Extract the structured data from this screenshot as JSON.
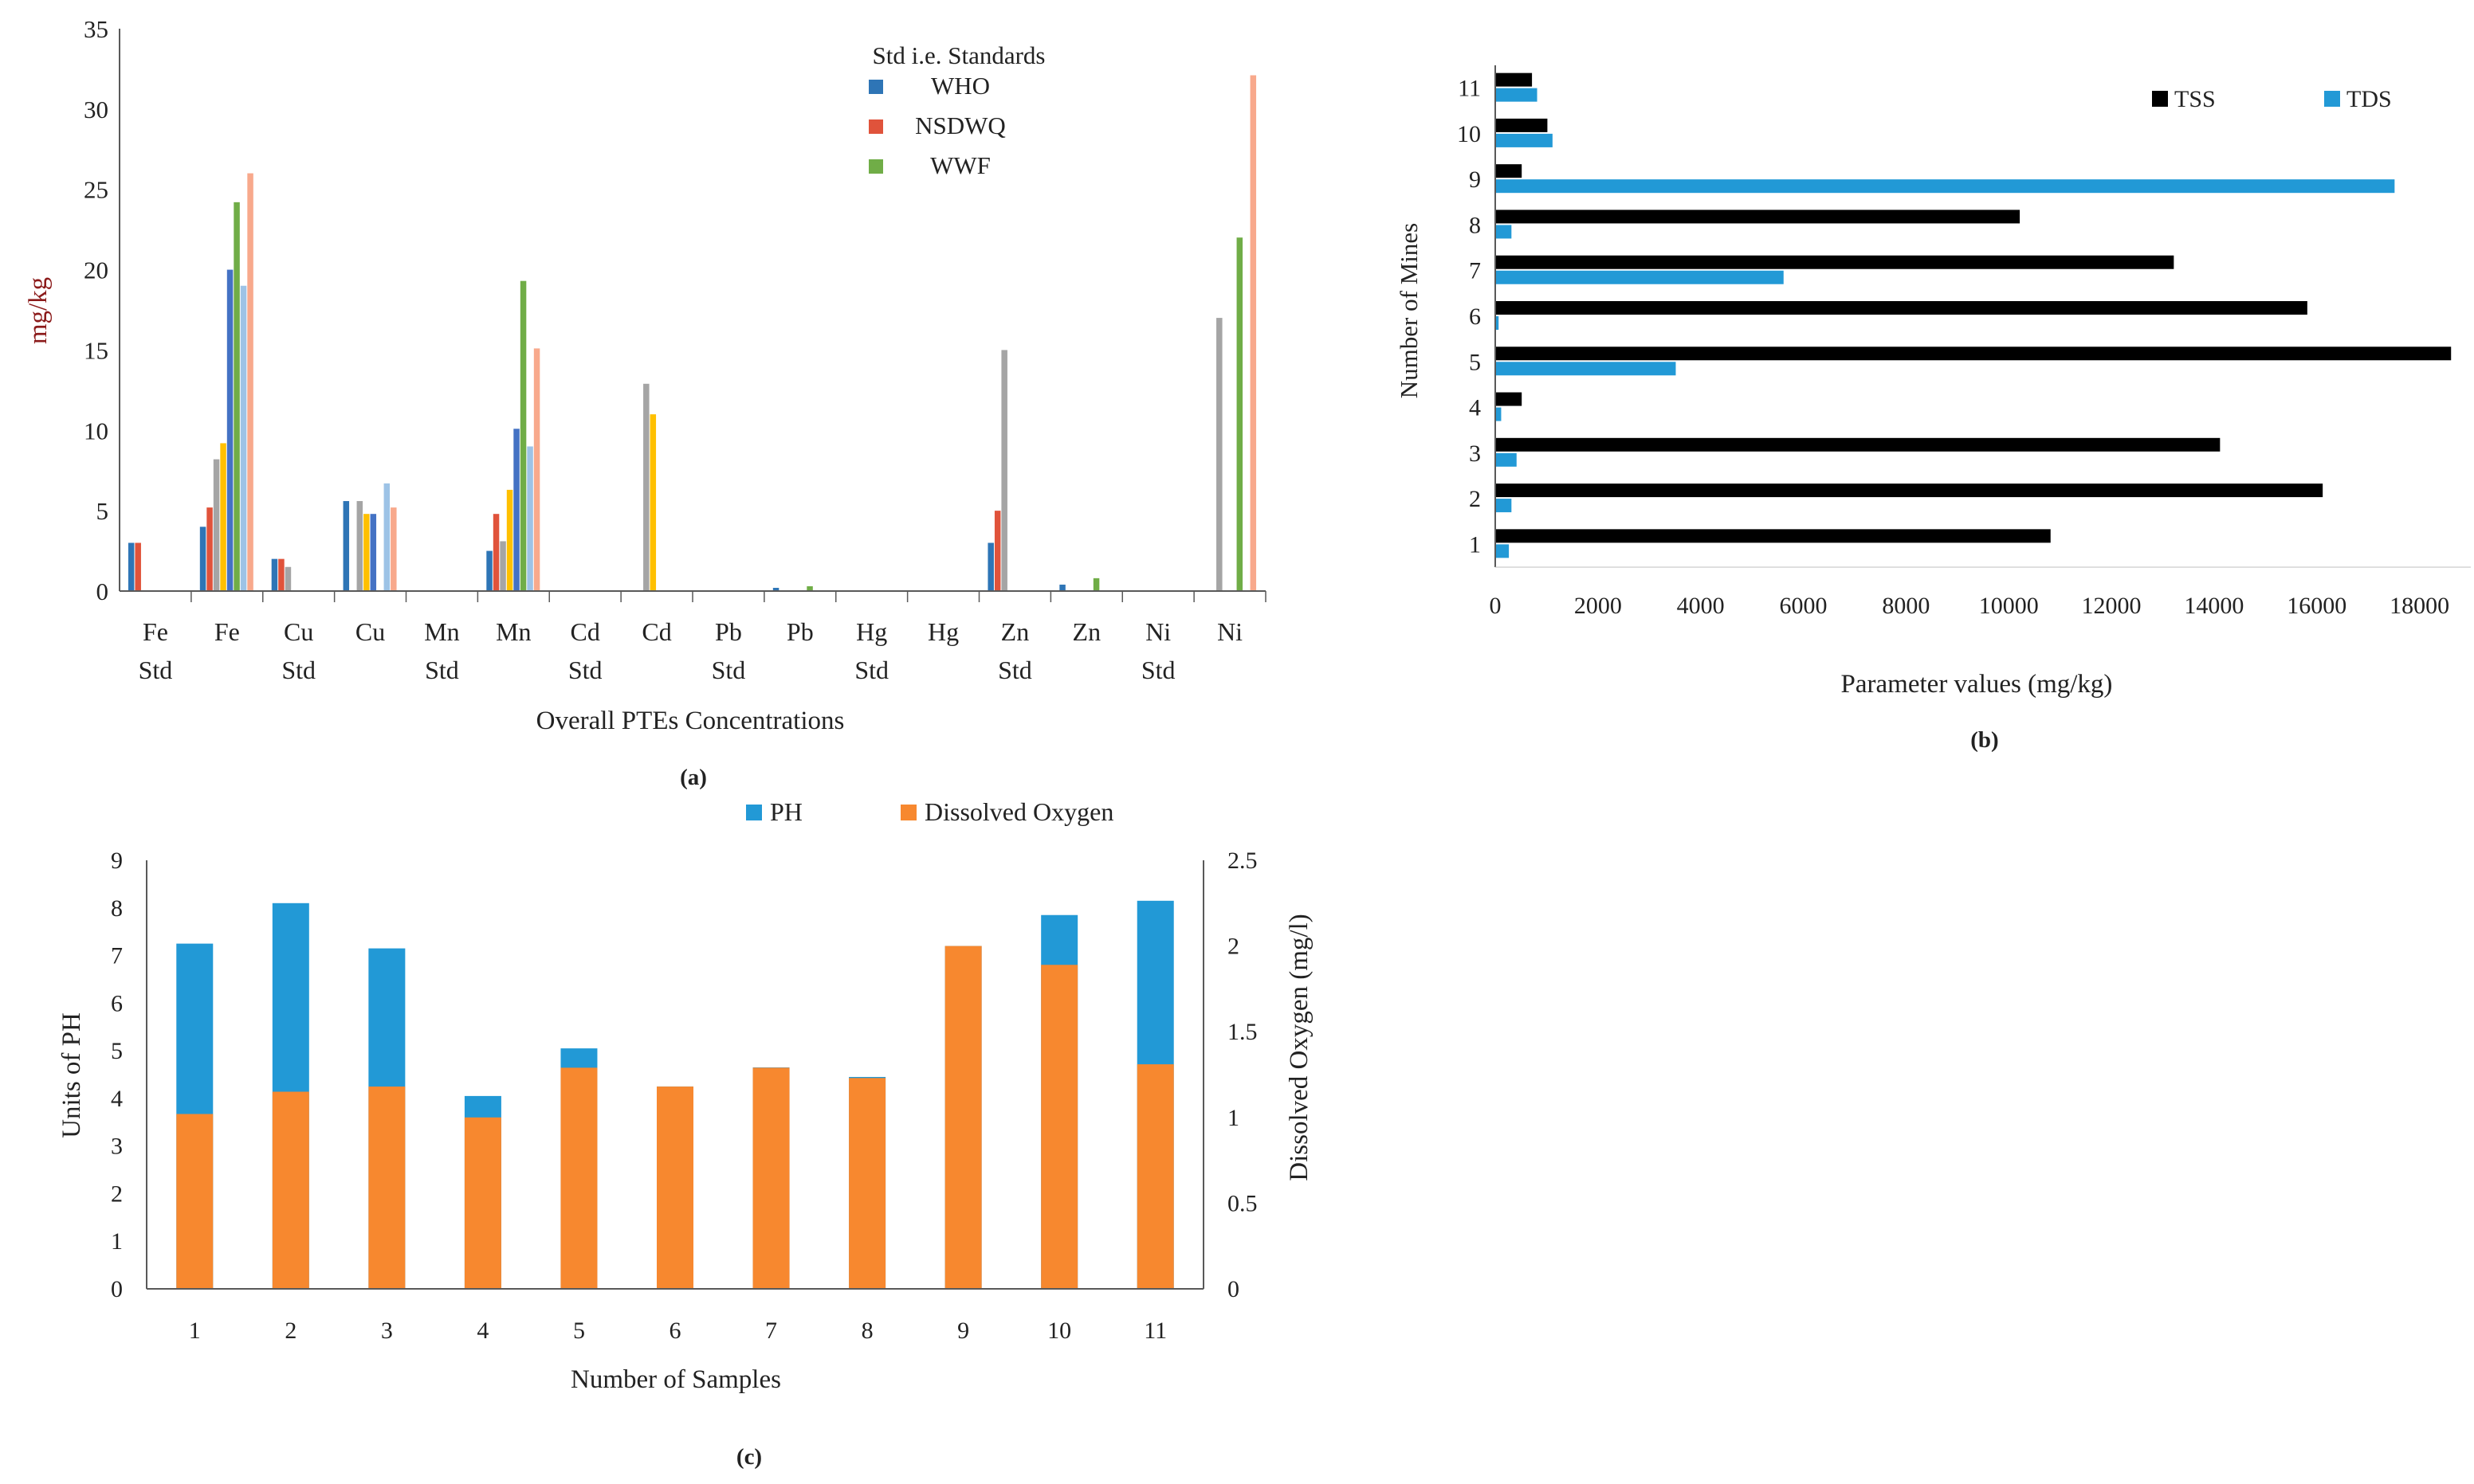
{
  "figure": {
    "panel_labels": {
      "a": "(a)",
      "b": "(b)",
      "c": "(c)"
    }
  },
  "chart_data": [
    {
      "id": "a",
      "type": "bar",
      "title": "",
      "xlabel": "Overall PTEs Concentrations",
      "ylabel": "mg/kg",
      "ylim": [
        0,
        35
      ],
      "yticks": [
        "0",
        "5",
        "10",
        "15",
        "20",
        "25",
        "30",
        "35"
      ],
      "categories": [
        [
          "Fe",
          "Std"
        ],
        [
          "Fe",
          ""
        ],
        [
          "Cu",
          "Std"
        ],
        [
          "Cu",
          ""
        ],
        [
          "Mn",
          "Std"
        ],
        [
          "Mn",
          ""
        ],
        [
          "Cd",
          "Std"
        ],
        [
          "Cd",
          ""
        ],
        [
          "Pb",
          "Std"
        ],
        [
          "Pb",
          ""
        ],
        [
          "Hg",
          "Std"
        ],
        [
          "Hg",
          ""
        ],
        [
          "Zn",
          "Std"
        ],
        [
          "Zn",
          ""
        ],
        [
          "Ni",
          "Std"
        ],
        [
          "Ni",
          ""
        ]
      ],
      "legend_title": "Std i.e. Standards",
      "legend": [
        "WHO",
        "NSDWQ",
        "WWF"
      ],
      "legend_colors": [
        "#2e75b6",
        "#e0533b",
        "#70ad47"
      ],
      "series_colors": [
        "#2e75b6",
        "#e0533b",
        "#a5a5a5",
        "#ffc000",
        "#4472c4",
        "#70ad47",
        "#9dc3e6",
        "#f8a98c"
      ],
      "series": [
        {
          "values": [
            3.0,
            4.0,
            2.0,
            5.6,
            0,
            2.5,
            0,
            0,
            0,
            0.2,
            0,
            0,
            3.0,
            0.4,
            0,
            0
          ]
        },
        {
          "values": [
            3.0,
            5.2,
            2.0,
            0,
            0,
            4.8,
            0,
            0,
            0,
            0,
            0,
            0,
            5.0,
            0,
            0,
            0
          ]
        },
        {
          "values": [
            0,
            8.2,
            1.5,
            5.6,
            0,
            3.1,
            0,
            12.9,
            0,
            0,
            0,
            0,
            15.0,
            0,
            0,
            17.0
          ]
        },
        {
          "values": [
            0,
            9.2,
            0,
            4.8,
            0,
            6.3,
            0,
            11.0,
            0,
            0,
            0,
            0,
            0,
            0,
            0,
            0
          ]
        },
        {
          "values": [
            0,
            20.0,
            0,
            4.8,
            0,
            10.1,
            0,
            0,
            0,
            0,
            0,
            0,
            0,
            0,
            0,
            0
          ]
        },
        {
          "values": [
            0,
            24.2,
            0,
            0,
            0,
            19.3,
            0,
            0,
            0,
            0.3,
            0,
            0,
            0,
            0.8,
            0,
            22.0
          ]
        },
        {
          "values": [
            0,
            19.0,
            0,
            6.7,
            0,
            9.0,
            0,
            0,
            0,
            0,
            0,
            0,
            0,
            0,
            0,
            0
          ]
        },
        {
          "values": [
            0,
            26.0,
            0,
            5.2,
            0,
            15.1,
            0,
            0,
            0,
            0,
            0,
            0,
            0,
            0,
            0,
            32.1
          ]
        }
      ]
    },
    {
      "id": "b",
      "type": "bar",
      "orientation": "horizontal",
      "xlabel": "Parameter values (mg/kg)",
      "ylabel": "Number of Mines",
      "xlim": [
        0,
        19000
      ],
      "xticks": [
        "0",
        "2000",
        "4000",
        "6000",
        "8000",
        "10000",
        "12000",
        "14000",
        "16000",
        "18000"
      ],
      "categories": [
        "1",
        "2",
        "3",
        "4",
        "5",
        "6",
        "7",
        "8",
        "9",
        "10",
        "11"
      ],
      "legend": [
        "TSS",
        "TDS"
      ],
      "series": [
        {
          "name": "TSS",
          "color": "#000000",
          "values": [
            10800,
            16100,
            14100,
            500,
            18600,
            15800,
            13200,
            10200,
            500,
            1000,
            700
          ]
        },
        {
          "name": "TDS",
          "color": "#2299d6",
          "values": [
            250,
            300,
            400,
            100,
            3500,
            50,
            5600,
            300,
            17500,
            1100,
            800
          ]
        }
      ]
    },
    {
      "id": "c",
      "type": "bar",
      "stacked": true,
      "xlabel": "Number of Samples",
      "ylabel": "Units of PH",
      "y2label": "Dissolved Oxygen (mg/l)",
      "ylim": [
        0,
        9
      ],
      "y2lim": [
        0,
        2.5
      ],
      "yticks": [
        "0",
        "1",
        "2",
        "3",
        "4",
        "5",
        "6",
        "7",
        "8",
        "9"
      ],
      "y2ticks": [
        "0",
        "0.5",
        "1",
        "1.5",
        "2",
        "2.5"
      ],
      "categories": [
        "1",
        "2",
        "3",
        "4",
        "5",
        "6",
        "7",
        "8",
        "9",
        "10",
        "11"
      ],
      "legend": [
        "PH",
        "Dissolved Oxygen"
      ],
      "series": [
        {
          "name": "PH",
          "color": "#2299d6",
          "axis": "left",
          "values": [
            7.25,
            8.1,
            7.15,
            4.05,
            5.05,
            4.25,
            4.65,
            4.45,
            7.2,
            7.85,
            8.15
          ]
        },
        {
          "name": "Dissolved Oxygen",
          "color": "#f7882f",
          "axis": "right",
          "values": [
            1.02,
            1.15,
            1.18,
            1.0,
            1.29,
            1.18,
            1.29,
            1.23,
            2.0,
            1.89,
            1.31
          ]
        }
      ]
    }
  ]
}
